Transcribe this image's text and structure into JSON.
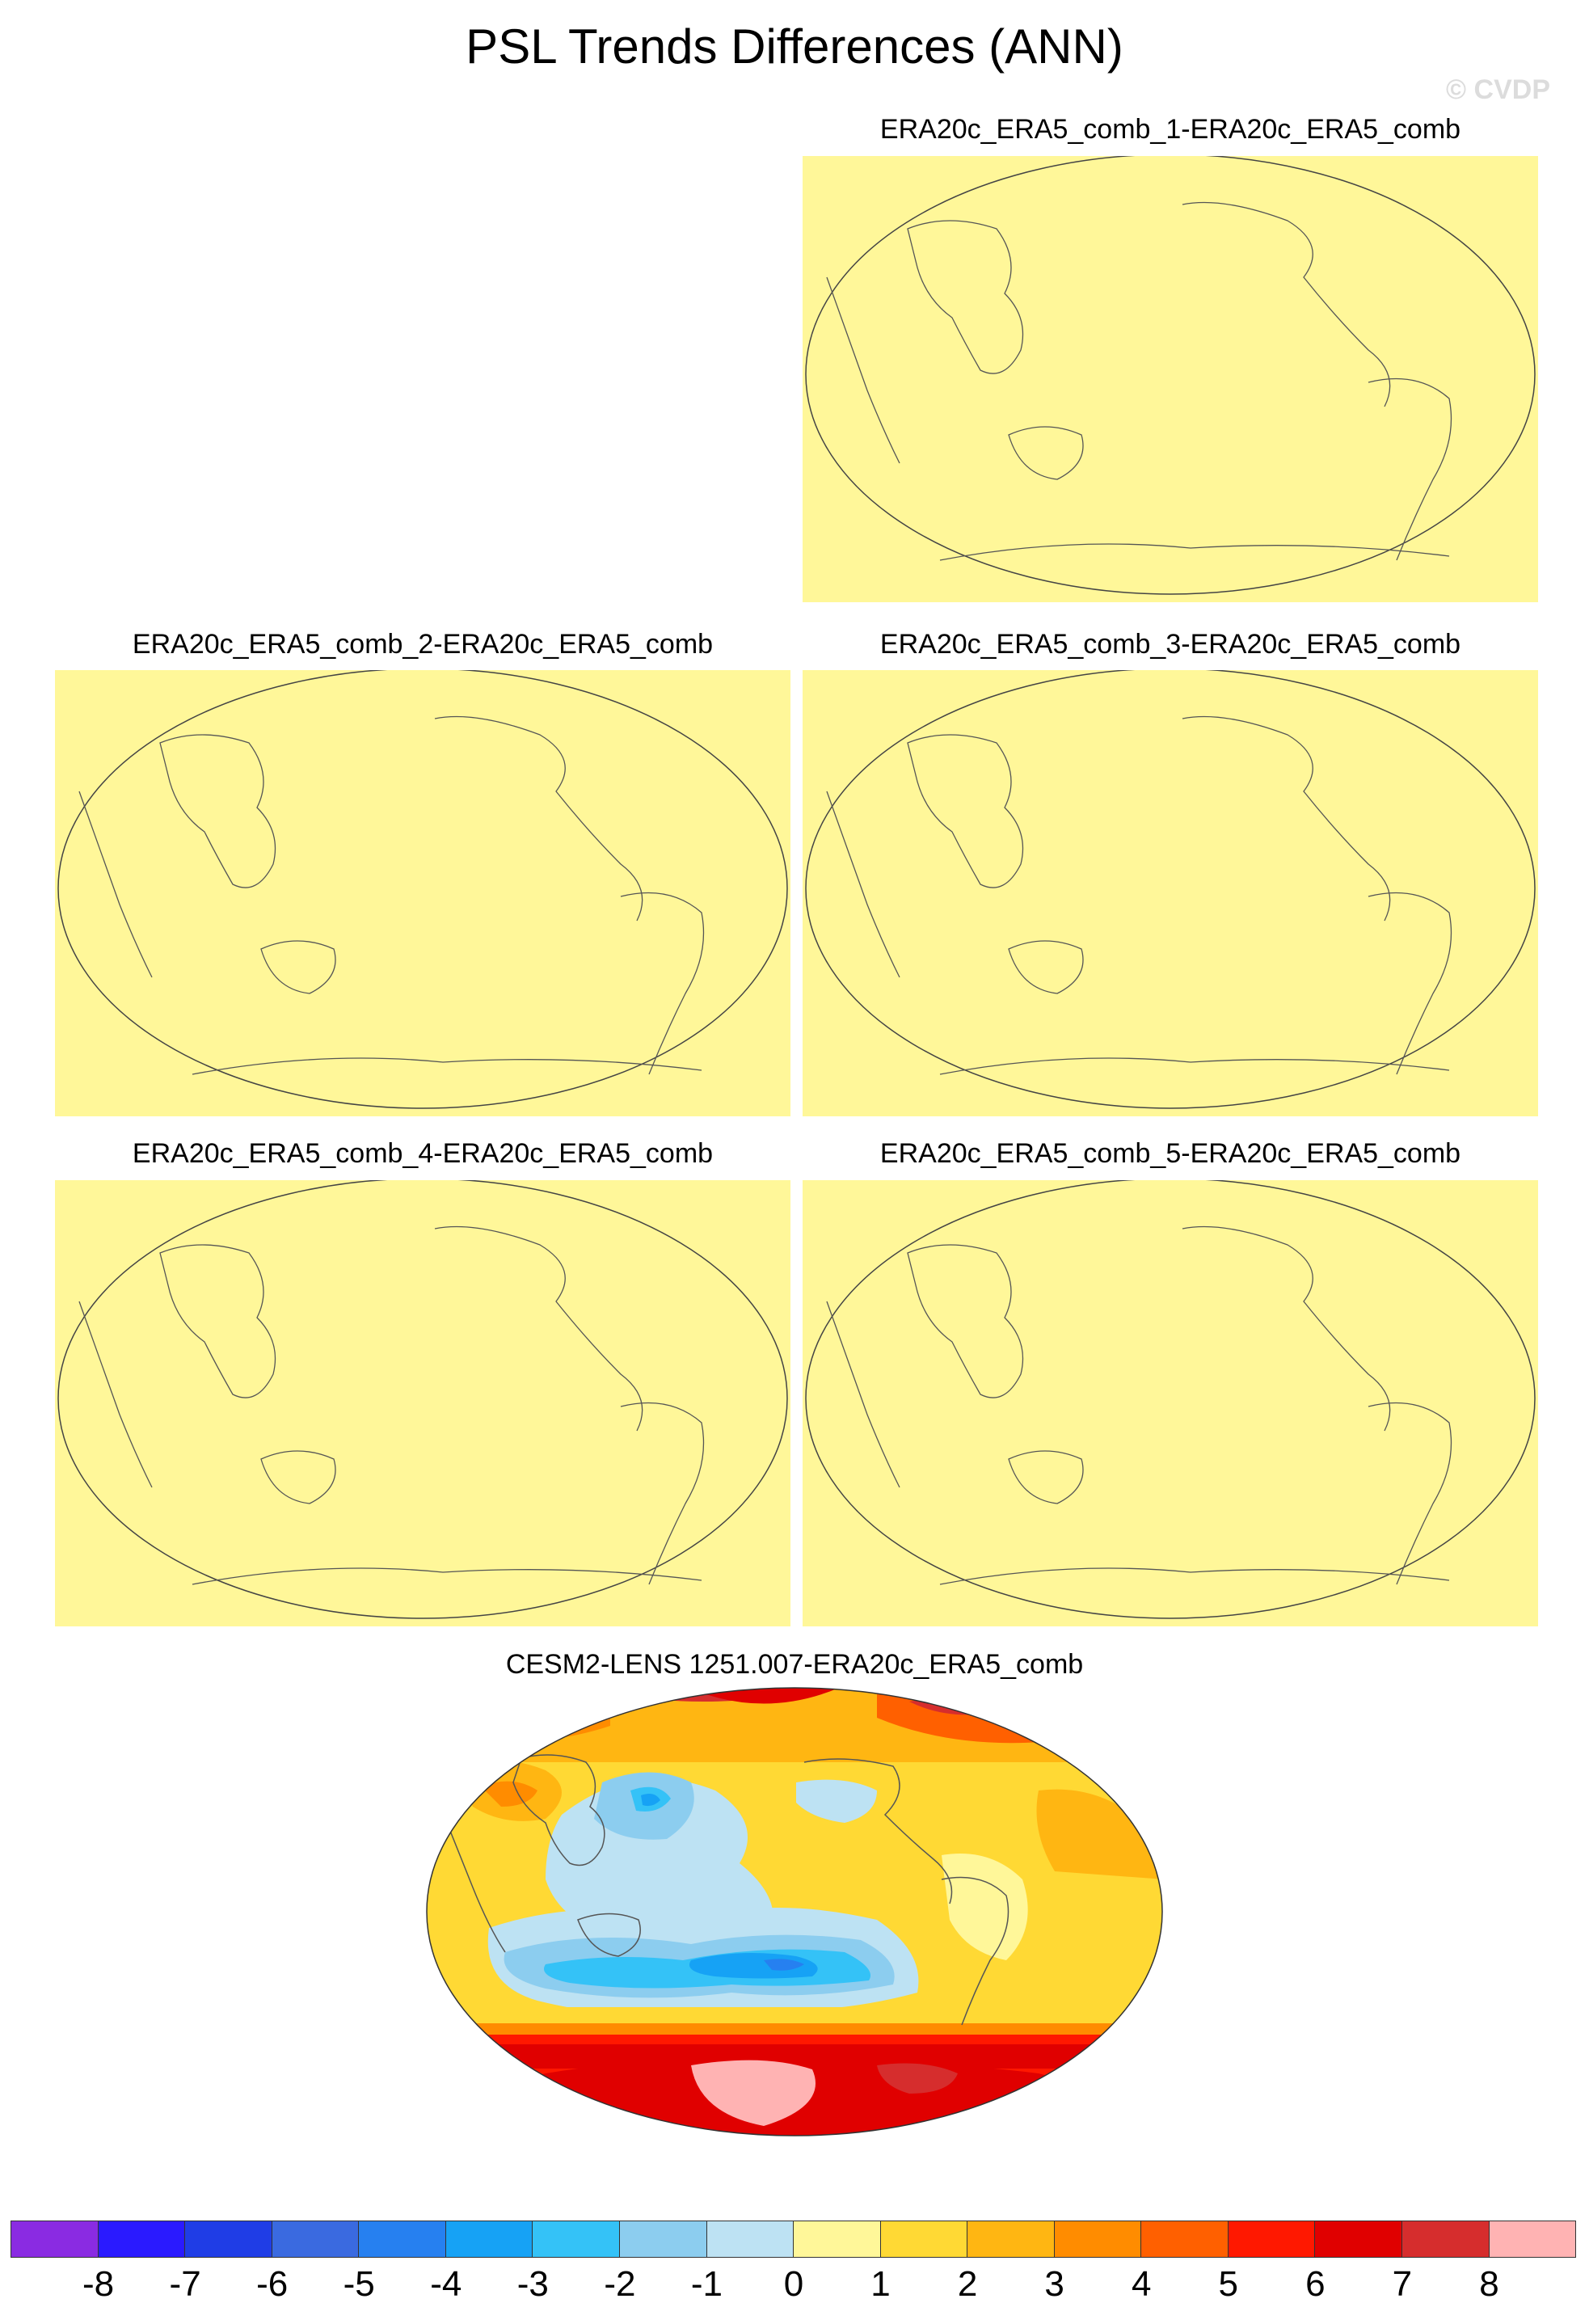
{
  "title": "PSL Trends Differences (ANN)",
  "watermark": "© CVDP",
  "panels": [
    {
      "title": "ERA20c_ERA5_comb_1-ERA20c_ERA5_comb",
      "fill_level": 0
    },
    {
      "title": "ERA20c_ERA5_comb_2-ERA20c_ERA5_comb",
      "fill_level": 0
    },
    {
      "title": "ERA20c_ERA5_comb_3-ERA20c_ERA5_comb",
      "fill_level": 0
    },
    {
      "title": "ERA20c_ERA5_comb_4-ERA20c_ERA5_comb",
      "fill_level": 0
    },
    {
      "title": "ERA20c_ERA5_comb_5-ERA20c_ERA5_comb",
      "fill_level": 0
    }
  ],
  "cesm_panel": {
    "title": "CESM2-LENS 1251.007-ERA20c_ERA5_comb"
  },
  "colorbar": {
    "labels": [
      "-8",
      "-7",
      "-6",
      "-5",
      "-4",
      "-3",
      "-2",
      "-1",
      "0",
      "1",
      "2",
      "3",
      "4",
      "5",
      "6",
      "7",
      "8"
    ],
    "colors": [
      "#8a2be2",
      "#2a1aff",
      "#1f3de6",
      "#3a6ae0",
      "#2680f0",
      "#16a2f5",
      "#34c2f7",
      "#8ccdef",
      "#bde2f3",
      "#fff799",
      "#ffd934",
      "#ffb612",
      "#ff8c00",
      "#ff6000",
      "#ff1800",
      "#e00000",
      "#d62d2d",
      "#ffb3b3"
    ]
  }
}
